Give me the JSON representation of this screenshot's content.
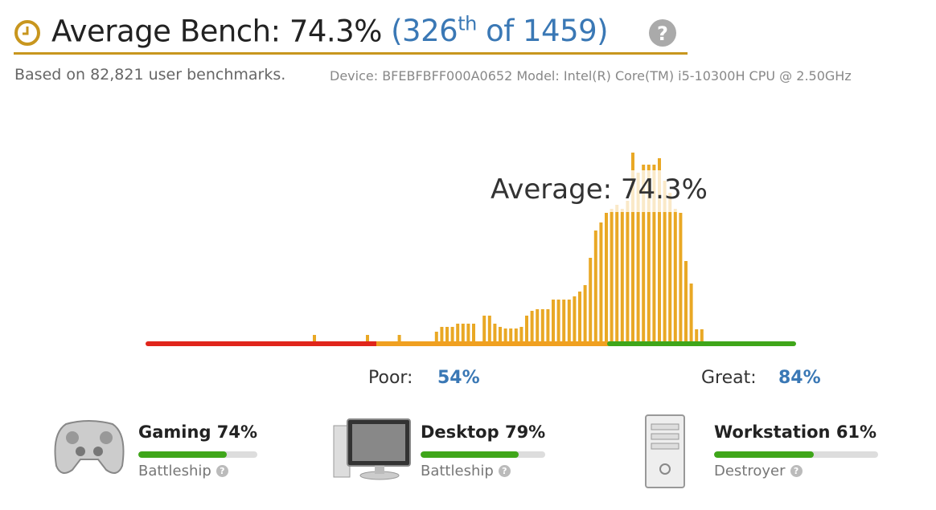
{
  "header": {
    "title": "Average Bench: 74.3%",
    "rank_open": "(326",
    "rank_suffix": "th",
    "rank_rest": " of 1459)",
    "subtitle": "Based on 82,821 user benchmarks.",
    "device": "Device: BFEBFBFF000A0652 Model: Intel(R) Core(TM) i5-10300H CPU @ 2.50GHz"
  },
  "chart_data": {
    "type": "bar",
    "average_label": "Average: 74.3%",
    "values": [
      8,
      0,
      0,
      0,
      0,
      0,
      0,
      0,
      0,
      0,
      8,
      0,
      0,
      0,
      0,
      0,
      8,
      0,
      0,
      0,
      0,
      0,
      0,
      12,
      18,
      18,
      18,
      22,
      22,
      22,
      22,
      0,
      32,
      32,
      22,
      18,
      16,
      16,
      16,
      18,
      32,
      38,
      40,
      40,
      40,
      52,
      52,
      52,
      52,
      56,
      62,
      70,
      104,
      138,
      148,
      160,
      165,
      170,
      165,
      175,
      235,
      210,
      220,
      220,
      220,
      228,
      200,
      185,
      165,
      160,
      100,
      72,
      15,
      15
    ],
    "color": "#e9a825",
    "ylim": [
      0,
      240
    ],
    "poor_label": "Poor:",
    "poor_value": "54%",
    "great_label": "Great:",
    "great_value": "84%"
  },
  "categories": [
    {
      "name": "Gaming",
      "score": 74,
      "score_label": "74%",
      "tier": "Battleship"
    },
    {
      "name": "Desktop",
      "score": 79,
      "score_label": "79%",
      "tier": "Battleship"
    },
    {
      "name": "Workstation",
      "score": 61,
      "score_label": "61%",
      "tier": "Destroyer"
    }
  ]
}
